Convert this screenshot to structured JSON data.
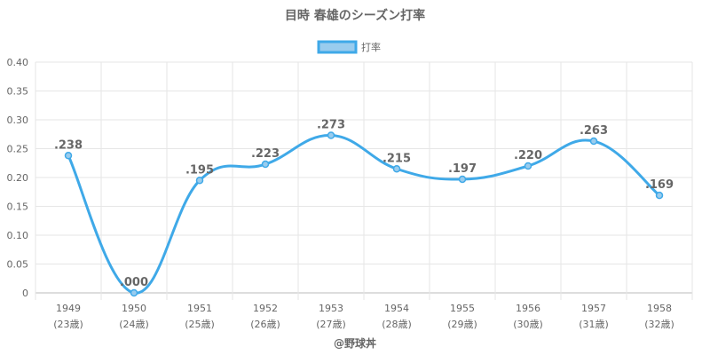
{
  "chart_data": {
    "type": "line",
    "title": "目時 春雄のシーズン打率",
    "categories": [
      "1949",
      "1950",
      "1951",
      "1952",
      "1953",
      "1954",
      "1955",
      "1956",
      "1957",
      "1958"
    ],
    "ages": [
      "(23歳)",
      "(24歳)",
      "(25歳)",
      "(26歳)",
      "(27歳)",
      "(28歳)",
      "(29歳)",
      "(30歳)",
      "(31歳)",
      "(32歳)"
    ],
    "series": [
      {
        "name": "打率",
        "values": [
          0.238,
          0.0,
          0.195,
          0.223,
          0.273,
          0.215,
          0.197,
          0.22,
          0.263,
          0.169
        ],
        "labels": [
          ".238",
          ".000",
          ".195",
          ".223",
          ".273",
          ".215",
          ".197",
          ".220",
          ".263",
          ".169"
        ],
        "color": "#3fa9e8",
        "fill": "#99ccee"
      }
    ],
    "ylim": [
      0,
      0.4
    ],
    "yticks": [
      "0",
      "0.05",
      "0.10",
      "0.15",
      "0.20",
      "0.25",
      "0.30",
      "0.35",
      "0.40"
    ],
    "ytick_values": [
      0,
      0.05,
      0.1,
      0.15,
      0.2,
      0.25,
      0.3,
      0.35,
      0.4
    ],
    "legend": "top-center",
    "grid": true,
    "credit": "@野球丼"
  }
}
